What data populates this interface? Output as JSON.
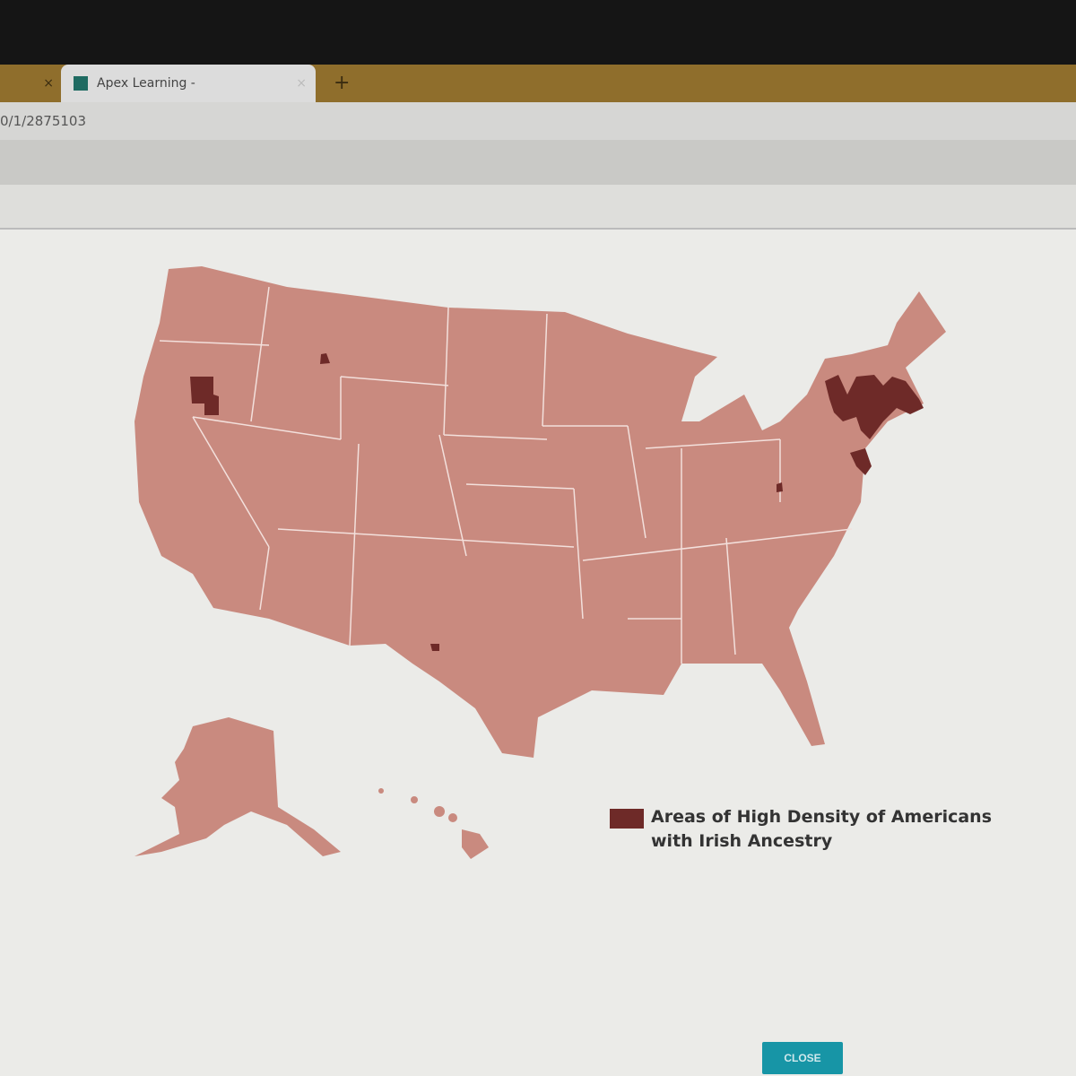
{
  "browser": {
    "active_tab_title": "Apex Learning -",
    "inactive_tab_close": "×",
    "active_tab_close": "×",
    "new_tab": "+",
    "address": "0/1/2875103"
  },
  "map": {
    "base_color": "#c98a7f",
    "highlight_color": "#6e2a28",
    "state_line_color": "#f3e0dc"
  },
  "legend": {
    "line1": "Areas of High Density of Americans",
    "line2": "with Irish Ancestry"
  },
  "close_button": "CLOSE"
}
